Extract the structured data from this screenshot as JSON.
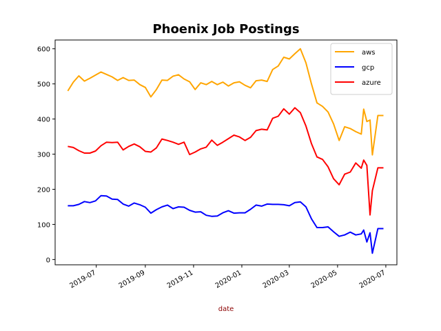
{
  "chart_data": {
    "type": "line",
    "title": "Phoenix Job Postings",
    "xlabel": "date",
    "xlabel_color": "#8b0000",
    "ylabel": "",
    "xlim": [
      "2019-05-10",
      "2020-07-15"
    ],
    "ylim": [
      -15,
      625
    ],
    "x_ticks": [
      "2019-07",
      "2019-09",
      "2019-11",
      "2020-01",
      "2020-03",
      "2020-05",
      "2020-07"
    ],
    "y_ticks": [
      0,
      100,
      200,
      300,
      400,
      500,
      600
    ],
    "grid": false,
    "legend": "top-right",
    "x": [
      "2019-05-26",
      "2019-06-02",
      "2019-06-09",
      "2019-06-16",
      "2019-06-23",
      "2019-06-30",
      "2019-07-07",
      "2019-07-14",
      "2019-07-21",
      "2019-07-28",
      "2019-08-04",
      "2019-08-11",
      "2019-08-18",
      "2019-08-25",
      "2019-09-01",
      "2019-09-08",
      "2019-09-15",
      "2019-09-22",
      "2019-09-29",
      "2019-10-06",
      "2019-10-13",
      "2019-10-20",
      "2019-10-27",
      "2019-11-03",
      "2019-11-10",
      "2019-11-17",
      "2019-11-24",
      "2019-12-01",
      "2019-12-08",
      "2019-12-15",
      "2019-12-22",
      "2019-12-29",
      "2020-01-05",
      "2020-01-12",
      "2020-01-19",
      "2020-01-26",
      "2020-02-02",
      "2020-02-09",
      "2020-02-16",
      "2020-02-23",
      "2020-03-01",
      "2020-03-08",
      "2020-03-15",
      "2020-03-22",
      "2020-03-29",
      "2020-04-05",
      "2020-04-12",
      "2020-04-19",
      "2020-04-26",
      "2020-05-03",
      "2020-05-10",
      "2020-05-17",
      "2020-05-24",
      "2020-05-31",
      "2020-06-03",
      "2020-06-07",
      "2020-06-11",
      "2020-06-14",
      "2020-06-21",
      "2020-06-28"
    ],
    "series": [
      {
        "name": "aws",
        "color": "#ffa500",
        "values": [
          480,
          505,
          523,
          508,
          516,
          525,
          534,
          527,
          520,
          510,
          518,
          510,
          511,
          498,
          490,
          463,
          484,
          511,
          510,
          522,
          526,
          514,
          506,
          484,
          503,
          498,
          507,
          498,
          505,
          494,
          503,
          506,
          496,
          489,
          509,
          511,
          507,
          541,
          551,
          576,
          571,
          586,
          600,
          560,
          500,
          446,
          436,
          420,
          386,
          339,
          378,
          373,
          364,
          357,
          428,
          393,
          397,
          298,
          410,
          410
        ]
      },
      {
        "name": "gcp",
        "color": "#0000ff",
        "values": [
          153,
          153,
          157,
          165,
          162,
          167,
          182,
          181,
          172,
          171,
          158,
          152,
          161,
          156,
          149,
          132,
          142,
          150,
          155,
          145,
          150,
          149,
          140,
          135,
          136,
          126,
          123,
          124,
          133,
          139,
          132,
          133,
          133,
          143,
          155,
          152,
          158,
          157,
          157,
          156,
          153,
          162,
          164,
          150,
          116,
          91,
          91,
          93,
          79,
          66,
          70,
          78,
          70,
          73,
          84,
          50,
          76,
          18,
          88,
          88
        ]
      },
      {
        "name": "azure",
        "color": "#ff0000",
        "values": [
          322,
          319,
          310,
          303,
          303,
          309,
          324,
          334,
          333,
          334,
          312,
          322,
          329,
          321,
          308,
          306,
          318,
          343,
          339,
          334,
          328,
          334,
          299,
          306,
          315,
          320,
          340,
          325,
          334,
          344,
          354,
          349,
          339,
          348,
          367,
          371,
          369,
          402,
          408,
          429,
          414,
          432,
          418,
          380,
          330,
          292,
          285,
          264,
          230,
          213,
          243,
          249,
          275,
          260,
          283,
          268,
          127,
          196,
          261,
          261
        ]
      }
    ]
  }
}
